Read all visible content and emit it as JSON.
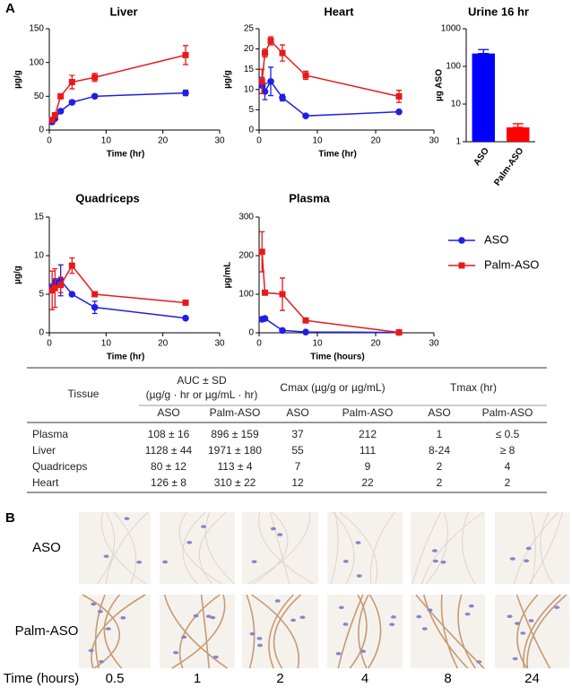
{
  "panel_labels": [
    "A",
    "B"
  ],
  "chart_data": [
    {
      "type": "line",
      "title": "Liver",
      "x_label": "Time (hr)",
      "y_label": "µg/g",
      "xlim": [
        0,
        30
      ],
      "xticks": [
        0,
        10,
        20,
        30
      ],
      "ylim": [
        0,
        150
      ],
      "yticks": [
        0,
        50,
        100,
        150
      ],
      "x": [
        0.5,
        1,
        2,
        4,
        8,
        24
      ],
      "series": [
        {
          "name": "ASO",
          "color": "#1f1fe6",
          "marker": "circle",
          "values": [
            12,
            17,
            28,
            41,
            50,
            55
          ],
          "errors": [
            2,
            2,
            2,
            3,
            2,
            4
          ]
        },
        {
          "name": "Palm-ASO",
          "color": "#e8191c",
          "marker": "square",
          "values": [
            15,
            22,
            50,
            71,
            78,
            111
          ],
          "errors": [
            2,
            3,
            3,
            10,
            6,
            14
          ]
        }
      ]
    },
    {
      "type": "line",
      "title": "Heart",
      "x_label": "Time (hr)",
      "y_label": "µg/g",
      "xlim": [
        0,
        30
      ],
      "xticks": [
        0,
        10,
        20,
        30
      ],
      "ylim": [
        0,
        25
      ],
      "yticks": [
        0,
        5,
        10,
        15,
        20,
        25
      ],
      "x": [
        0.5,
        1,
        2,
        4,
        8,
        24
      ],
      "series": [
        {
          "name": "ASO",
          "color": "#1f1fe6",
          "marker": "circle",
          "values": [
            11,
            9.5,
            12,
            8,
            3.5,
            4.5
          ],
          "errors": [
            2,
            2,
            3.5,
            0.8,
            0.2,
            0.3
          ]
        },
        {
          "name": "Palm-ASO",
          "color": "#e8191c",
          "marker": "square",
          "values": [
            12,
            19,
            22,
            19,
            13.5,
            8.3
          ],
          "errors": [
            3,
            1,
            1,
            2,
            1,
            1.5
          ]
        }
      ]
    },
    {
      "type": "bar",
      "title": "Urine 16 hr",
      "y_label": "µg ASO",
      "log": true,
      "ylim": [
        1,
        1000
      ],
      "yticks": [
        1,
        10,
        100,
        1000
      ],
      "categories": [
        "ASO",
        "Palm-ASO"
      ],
      "values": [
        220,
        2.4
      ],
      "errors": [
        60,
        0.6
      ],
      "colors": [
        "#0000ff",
        "#ff0000"
      ]
    },
    {
      "type": "line",
      "title": "Quadriceps",
      "x_label": "Time (hr)",
      "y_label": "µg/g",
      "xlim": [
        0,
        30
      ],
      "xticks": [
        0,
        10,
        20,
        30
      ],
      "ylim": [
        0,
        15
      ],
      "yticks": [
        0,
        5,
        10,
        15
      ],
      "x": [
        0.5,
        1,
        2,
        4,
        8,
        24
      ],
      "series": [
        {
          "name": "ASO",
          "color": "#1f1fe6",
          "marker": "circle",
          "values": [
            5.8,
            6.5,
            6.8,
            5,
            3.3,
            1.9
          ],
          "errors": [
            0.5,
            0.5,
            2,
            0.2,
            0.8,
            0.2
          ]
        },
        {
          "name": "Palm-ASO",
          "color": "#e8191c",
          "marker": "square",
          "values": [
            5.5,
            5.8,
            6.2,
            8.7,
            5,
            3.9
          ],
          "errors": [
            2.5,
            2.5,
            1,
            1,
            0.2,
            0.2
          ]
        }
      ]
    },
    {
      "type": "line",
      "title": "Plasma",
      "x_label": "Time (hours)",
      "y_label": "µg/mL",
      "xlim": [
        0,
        30
      ],
      "xticks": [
        0,
        10,
        20,
        30
      ],
      "ylim": [
        0,
        300
      ],
      "yticks": [
        0,
        100,
        200,
        300
      ],
      "x": [
        0.5,
        1,
        4,
        8,
        24
      ],
      "series": [
        {
          "name": "ASO",
          "color": "#1f1fe6",
          "marker": "circle",
          "values": [
            35,
            37,
            6,
            2,
            1
          ],
          "errors": [
            3,
            3,
            1,
            1,
            0
          ]
        },
        {
          "name": "Palm-ASO",
          "color": "#e8191c",
          "marker": "square",
          "values": [
            210,
            104,
            100,
            32,
            1
          ],
          "errors": [
            52,
            3,
            42,
            3,
            0
          ]
        }
      ]
    }
  ],
  "table": {
    "header": {
      "tissue": "Tissue",
      "auc": [
        "AUC ± SD",
        "(µg/g · hr or µg/mL · hr)"
      ],
      "cmax": "Cmax (µg/g or µg/mL)",
      "tmax": "Tmax (hr)"
    },
    "subheader": [
      "ASO",
      "Palm-ASO",
      "ASO",
      "Palm-ASO",
      "ASO",
      "Palm-ASO"
    ],
    "rows": [
      [
        "Plasma",
        "108 ± 16",
        "896 ± 159",
        "37",
        "212",
        "1",
        "≤ 0.5"
      ],
      [
        "Liver",
        "1128 ± 44",
        "1971 ± 180",
        "55",
        "111",
        "8-24",
        "≥ 8"
      ],
      [
        "Quadriceps",
        "80 ± 12",
        "113 ± 4",
        "7",
        "9",
        "2",
        "4"
      ],
      [
        "Heart",
        "126 ± 8",
        "310 ± 22",
        "12",
        "22",
        "2",
        "2"
      ]
    ]
  },
  "micrographs": {
    "rows": [
      "ASO",
      "Palm-ASO"
    ],
    "time_label": "Time (hours)",
    "times": [
      "0.5",
      "1",
      "2",
      "4",
      "8",
      "24"
    ]
  }
}
